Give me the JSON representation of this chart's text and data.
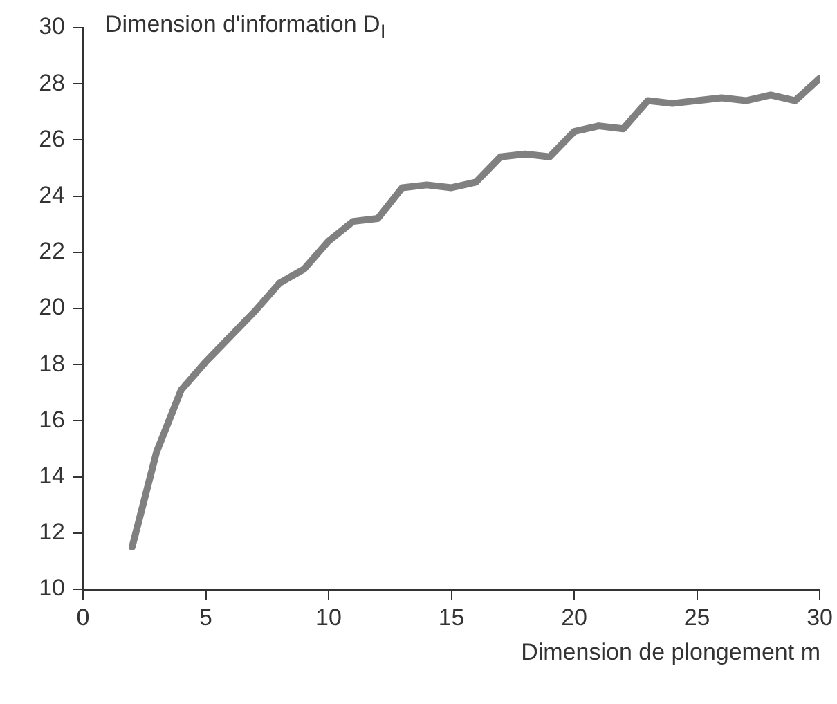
{
  "chart_data": {
    "type": "line",
    "ylabel": "Dimension d'information D$_{I}$",
    "xlabel": "Dimension de plongement m",
    "x": [
      2,
      3,
      4,
      5,
      6,
      7,
      8,
      9,
      10,
      11,
      12,
      13,
      14,
      15,
      16,
      17,
      18,
      19,
      20,
      21,
      22,
      23,
      24,
      25,
      26,
      27,
      28,
      29,
      30
    ],
    "series": [
      {
        "color": "#808080",
        "values": [
          11.5,
          14.9,
          17.1,
          18.1,
          19.0,
          19.9,
          20.9,
          21.4,
          22.4,
          23.1,
          23.2,
          24.3,
          24.4,
          24.3,
          24.5,
          25.4,
          25.5,
          25.4,
          26.3,
          26.5,
          26.4,
          27.4,
          27.3,
          27.4,
          27.5,
          27.4,
          27.6,
          27.4,
          28.2
        ]
      }
    ],
    "xlim": [
      0,
      30
    ],
    "xticks": [
      0,
      5,
      10,
      15,
      20,
      25,
      30
    ],
    "ylim": [
      10,
      30
    ],
    "yticks": [
      10,
      12,
      14,
      16,
      18,
      20,
      22,
      24,
      26,
      28,
      30
    ],
    "grid": false,
    "legend": false,
    "marker": "none",
    "line_style": "solid"
  }
}
